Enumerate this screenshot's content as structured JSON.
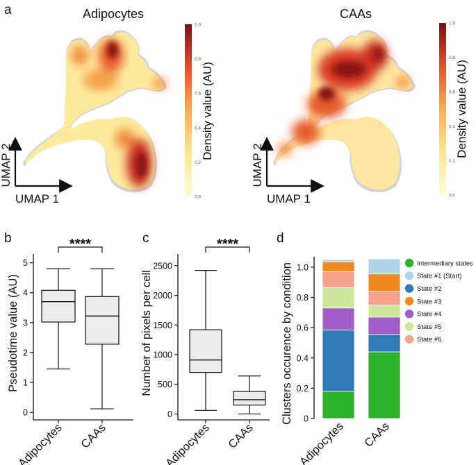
{
  "panel_labels": {
    "a": "a",
    "b": "b",
    "c": "c",
    "d": "d"
  },
  "panel_a": {
    "maps": [
      {
        "title": "Adipocytes",
        "colorbar_title": "Density value (AU)",
        "umap1": "UMAP 1",
        "umap2": "UMAP 2"
      },
      {
        "title": "CAAs",
        "colorbar_title": "Density value (AU)",
        "umap1": "UMAP 1",
        "umap2": "UMAP 2"
      }
    ],
    "colorbar_ticks": [
      "0.0",
      "0.2",
      "0.4",
      "0.6",
      "0.8",
      "1.0"
    ],
    "colors": {
      "low": "#fdf2b8",
      "mid": "#f08a3c",
      "high": "#8a1417",
      "background": "#cfcfcf"
    }
  },
  "chart_data": [
    {
      "type": "box",
      "panel": "b",
      "ylabel": "Pseudotime value (AU)",
      "categories": [
        "Adipocytes",
        "CAAs"
      ],
      "ylim": [
        -0.25,
        5.2
      ],
      "yticks": [
        0,
        1,
        2,
        3,
        4,
        5
      ],
      "boxes": [
        {
          "min": 1.45,
          "q1": 3.02,
          "median": 3.7,
          "q3": 4.08,
          "max": 4.8
        },
        {
          "min": 0.12,
          "q1": 2.28,
          "median": 3.22,
          "q3": 3.87,
          "max": 4.8
        }
      ],
      "significance": "****"
    },
    {
      "type": "box",
      "panel": "c",
      "ylabel": "Number of pixels per cell",
      "categories": [
        "Adipocytes",
        "CAAs"
      ],
      "ylim": [
        -100,
        2650
      ],
      "yticks": [
        0,
        500,
        1000,
        1500,
        2000,
        2500
      ],
      "boxes": [
        {
          "min": 60,
          "q1": 700,
          "median": 910,
          "q3": 1420,
          "max": 2420
        },
        {
          "min": 0,
          "q1": 150,
          "median": 240,
          "q3": 380,
          "max": 640
        }
      ],
      "significance": "****"
    },
    {
      "type": "bar",
      "stacked": true,
      "panel": "d",
      "ylabel": "Clusters occurence by condition",
      "categories": [
        "Adipocytes",
        "CAAs"
      ],
      "ylim": [
        0,
        1.05
      ],
      "yticks": [
        "0",
        "0.2",
        "0.4",
        "0.6",
        "0.8",
        "1.0"
      ],
      "legend_position": "right",
      "series": [
        {
          "name": "Intermediary states",
          "color": "#2db22d",
          "values": [
            0.18,
            0.44
          ]
        },
        {
          "name": "State #2",
          "color": "#2f7bb8",
          "values": [
            0.405,
            0.115
          ]
        },
        {
          "name": "State #4",
          "color": "#a35bc7",
          "values": [
            0.145,
            0.115
          ]
        },
        {
          "name": "State #5",
          "color": "#cbe89a",
          "values": [
            0.135,
            0.08
          ]
        },
        {
          "name": "State #6",
          "color": "#f8a28e",
          "values": [
            0.105,
            0.09
          ]
        },
        {
          "name": "State #3",
          "color": "#f08a1e",
          "values": [
            0.065,
            0.115
          ]
        },
        {
          "name": "State #1 (Start)",
          "color": "#add5ea",
          "values": [
            0.015,
            0.1
          ]
        }
      ],
      "legend_order": [
        "Intermediary states",
        "State #1 (Start)",
        "State #2",
        "State #3",
        "State #4",
        "State #5",
        "State #6"
      ]
    }
  ]
}
